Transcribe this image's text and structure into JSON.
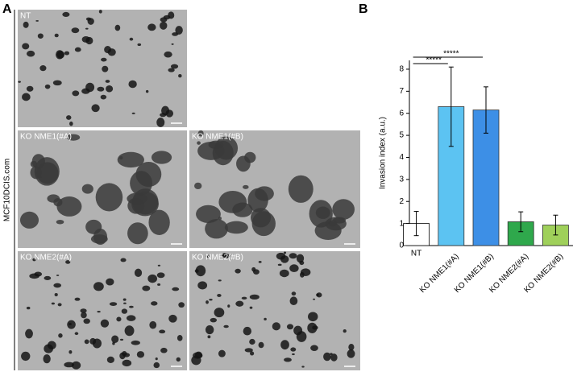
{
  "panel_a": {
    "label": "A",
    "side_label": "MCF10DCIS.com",
    "images": [
      "NT",
      "KO NME1(#A)",
      "KO NME1(#B)",
      "KO NME2(#A)",
      "KO NME2(#B)"
    ]
  },
  "panel_b_label": "B",
  "chart_data": {
    "type": "bar",
    "y_label": "Invasion index (a.u.)",
    "categories": [
      "NT",
      "KO NME1(#A)",
      "KO NME1(#B)",
      "KO NME2(#A)",
      "KO NME2(#B)"
    ],
    "values": [
      1.0,
      6.3,
      6.15,
      1.08,
      0.93
    ],
    "errors": [
      0.55,
      1.8,
      1.05,
      0.45,
      0.45
    ],
    "colors": [
      "#ffffff",
      "#5cc3f2",
      "#3d8fe6",
      "#2fa84c",
      "#9fd05a"
    ],
    "ylim": [
      0,
      8.4
    ],
    "yticks": [
      0,
      1,
      2,
      3,
      4,
      5,
      6,
      7,
      8
    ],
    "annotations": [
      "*****",
      "*****"
    ]
  }
}
